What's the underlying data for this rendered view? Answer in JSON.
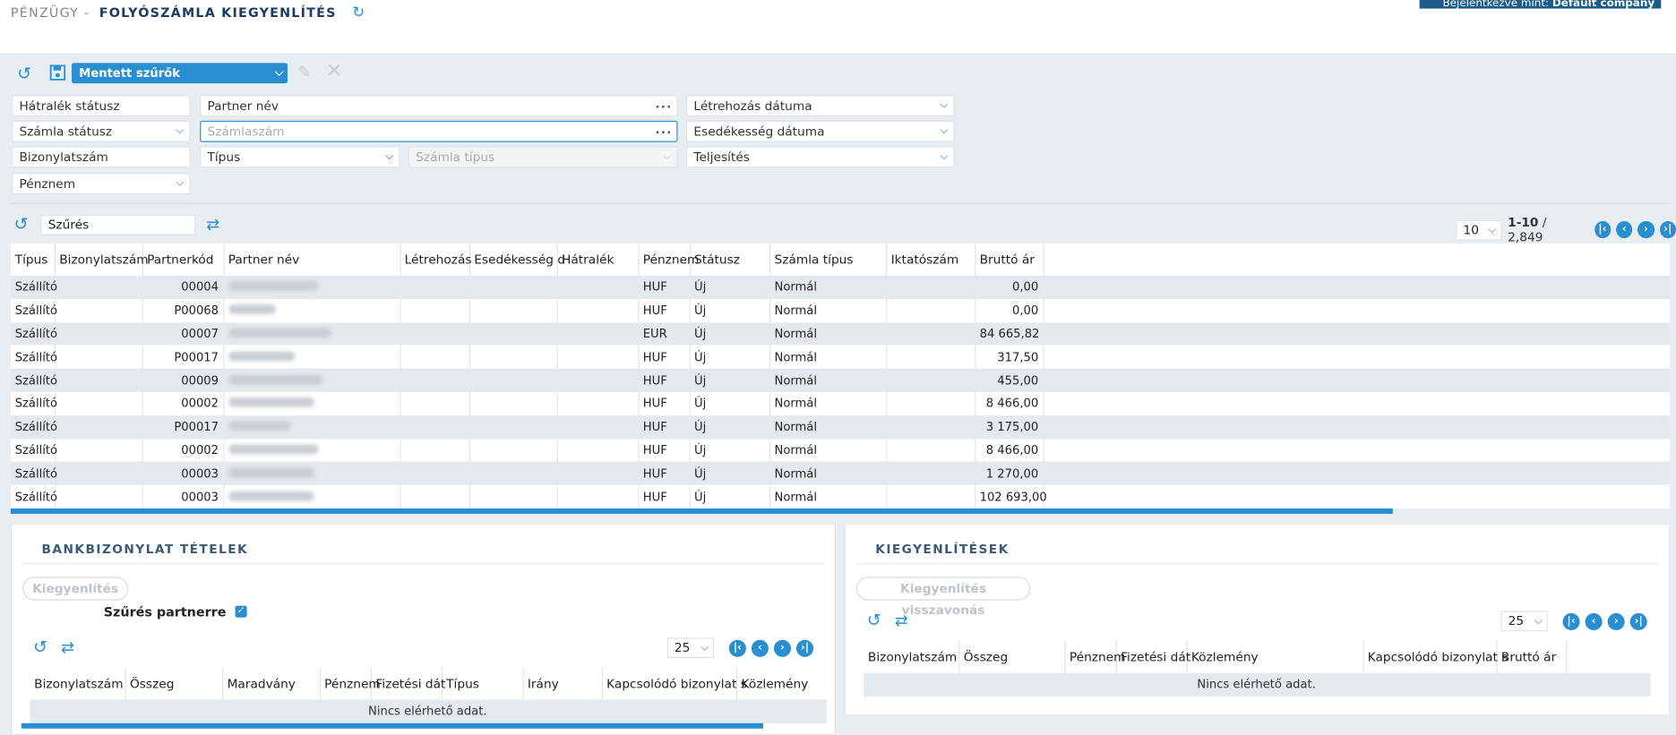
{
  "header": {
    "breadcrumb_section": "PÉNZÜGY -",
    "breadcrumb_page": "FOLYÓSZÁMLA KIEGYENLÍTÉS",
    "login_prefix": "Bejelentkezve mint:",
    "login_company": "Default company"
  },
  "toolbar": {
    "saved_filters_label": "Mentett szűrők"
  },
  "filters": {
    "hatralek_status": "Hátralék státusz",
    "szamla_status": "Számla státusz",
    "bizonylatszam": "Bizonylatszám",
    "penznem": "Pénznem",
    "partner_nev": "Partner név",
    "szamlaszam_placeholder": "Számlaszám",
    "tipus": "Típus",
    "szamla_tipus": "Számla típus",
    "letrehozas_datuma": "Létrehozás dátuma",
    "esedekesseg_datuma": "Esedékesség dátuma",
    "teljesites": "Teljesítés"
  },
  "grid_toolbar": {
    "filter_value": "Szűrés",
    "page_size": "10",
    "range": "1-10",
    "total": "/ 2,849"
  },
  "main_table": {
    "columns": [
      "Típus",
      "Bizonylatszám",
      "Partnerkód",
      "Partner név",
      "Létrehozás",
      "Esedékesség d",
      "Hátralék",
      "Pénznem",
      "Státusz",
      "Számla típus",
      "Iktatószám",
      "Bruttó ár"
    ],
    "rows": [
      {
        "tipus": "Szállító",
        "partnerkod": "00004",
        "penznem": "HUF",
        "statusz": "Új",
        "szamla_tipus": "Normál",
        "brutto": "0,00"
      },
      {
        "tipus": "Szállító",
        "partnerkod": "P00068",
        "penznem": "HUF",
        "statusz": "Új",
        "szamla_tipus": "Normál",
        "brutto": "0,00"
      },
      {
        "tipus": "Szállító",
        "partnerkod": "00007",
        "penznem": "EUR",
        "statusz": "Új",
        "szamla_tipus": "Normál",
        "brutto": "84 665,82"
      },
      {
        "tipus": "Szállító",
        "partnerkod": "P00017",
        "penznem": "HUF",
        "statusz": "Új",
        "szamla_tipus": "Normál",
        "brutto": "317,50"
      },
      {
        "tipus": "Szállító",
        "partnerkod": "00009",
        "penznem": "HUF",
        "statusz": "Új",
        "szamla_tipus": "Normál",
        "brutto": "455,00"
      },
      {
        "tipus": "Szállító",
        "partnerkod": "00002",
        "penznem": "HUF",
        "statusz": "Új",
        "szamla_tipus": "Normál",
        "brutto": "8 466,00"
      },
      {
        "tipus": "Szállító",
        "partnerkod": "P00017",
        "penznem": "HUF",
        "statusz": "Új",
        "szamla_tipus": "Normál",
        "brutto": "3 175,00"
      },
      {
        "tipus": "Szállító",
        "partnerkod": "00002",
        "penznem": "HUF",
        "statusz": "Új",
        "szamla_tipus": "Normál",
        "brutto": "8 466,00"
      },
      {
        "tipus": "Szállító",
        "partnerkod": "00003",
        "penznem": "HUF",
        "statusz": "Új",
        "szamla_tipus": "Normál",
        "brutto": "1 270,00"
      },
      {
        "tipus": "Szállító",
        "partnerkod": "00003",
        "penznem": "HUF",
        "statusz": "Új",
        "szamla_tipus": "Normál",
        "brutto": "102 693,00"
      }
    ]
  },
  "bank_panel": {
    "title": "BANKBIZONYLAT TÉTELEK",
    "settle_button": "Kiegyenlítés",
    "filter_partner_label": "Szűrés partnerre",
    "page_size": "25",
    "columns": [
      "Bizonylatszám",
      "Összeg",
      "Maradvány",
      "Pénznem",
      "Fizetési dát",
      "Típus",
      "Irány",
      "Kapcsolódó bizonylat s",
      "Közlemény"
    ],
    "no_data": "Nincs elérhető adat."
  },
  "settle_panel": {
    "title": "KIEGYENLÍTÉSEK",
    "revoke_button": "Kiegyenlítés visszavonás",
    "page_size": "25",
    "columns": [
      "Bizonylatszám",
      "Összeg",
      "Pénznem",
      "Fizetési dát",
      "Közlemény",
      "Kapcsolódó bizonylat s",
      "Bruttó ár"
    ],
    "no_data": "Nincs elérhető adat."
  },
  "colors": {
    "accent": "#2a8fd0",
    "header_bar": "#1c5c8a",
    "background": "#e8edf2",
    "row_alt": "#e4e9ee"
  },
  "icons": [
    "refresh-icon",
    "save-icon",
    "edit-icon",
    "close-icon",
    "swap-icon",
    "first-page-icon",
    "prev-page-icon",
    "next-page-icon",
    "last-page-icon",
    "chevron-down-icon",
    "ellipsis-icon",
    "checkbox-checked-icon"
  ]
}
